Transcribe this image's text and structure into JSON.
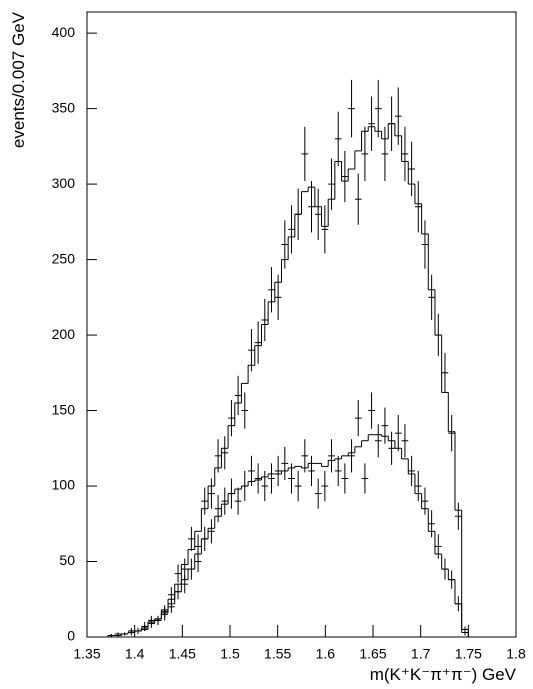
{
  "chart_data": {
    "type": "histogram",
    "x_label": "m(K⁺K⁻π⁺π⁻) GeV",
    "y_label": "events/0.007 GeV",
    "xlim": [
      1.35,
      1.8
    ],
    "xticks": [
      1.35,
      1.4,
      1.45,
      1.5,
      1.55,
      1.6,
      1.65,
      1.7,
      1.75,
      1.8
    ],
    "ylim": [
      0,
      414
    ],
    "yticks": [
      0,
      50,
      100,
      150,
      200,
      250,
      300,
      350,
      400
    ],
    "bins": [
      1.358,
      1.365,
      1.372,
      1.379,
      1.386,
      1.393,
      1.4,
      1.407,
      1.414,
      1.421,
      1.428,
      1.435,
      1.442,
      1.449,
      1.456,
      1.463,
      1.47,
      1.477,
      1.484,
      1.491,
      1.498,
      1.505,
      1.512,
      1.519,
      1.526,
      1.533,
      1.54,
      1.547,
      1.554,
      1.561,
      1.568,
      1.575,
      1.582,
      1.589,
      1.596,
      1.603,
      1.61,
      1.617,
      1.624,
      1.631,
      1.638,
      1.645,
      1.652,
      1.659,
      1.666,
      1.673,
      1.68,
      1.687,
      1.694,
      1.701,
      1.708,
      1.715,
      1.722,
      1.729,
      1.736,
      1.743,
      1.75
    ],
    "series": [
      {
        "color": "#000000",
        "values": [
          0,
          0,
          1,
          1,
          2,
          3,
          4,
          6,
          10,
          12,
          18,
          25,
          35,
          48,
          58,
          70,
          85,
          100,
          112,
          125,
          140,
          155,
          168,
          180,
          193,
          207,
          222,
          235,
          250,
          265,
          280,
          295,
          298,
          285,
          272,
          290,
          315,
          302,
          310,
          322,
          335,
          338,
          335,
          330,
          340,
          332,
          315,
          300,
          287,
          267,
          230,
          200,
          162,
          136,
          84,
          5
        ],
        "points": [
          0,
          0,
          1,
          2,
          2,
          4,
          4,
          7,
          11,
          11,
          17,
          28,
          42,
          45,
          65,
          60,
          90,
          95,
          120,
          122,
          145,
          160,
          150,
          190,
          195,
          210,
          230,
          225,
          260,
          270,
          280,
          320,
          285,
          280,
          270,
          300,
          330,
          305,
          350,
          290,
          320,
          340,
          350,
          320,
          340,
          345,
          320,
          310,
          285,
          260,
          225,
          200,
          175,
          135,
          80,
          5
        ],
        "errors": [
          0,
          0,
          1,
          1,
          1,
          2,
          2,
          3,
          3,
          3,
          4,
          5,
          6,
          7,
          8,
          8,
          9,
          10,
          11,
          11,
          12,
          13,
          12,
          14,
          14,
          14,
          15,
          15,
          16,
          16,
          17,
          18,
          17,
          17,
          16,
          17,
          18,
          17,
          19,
          17,
          18,
          18,
          19,
          18,
          18,
          19,
          18,
          18,
          17,
          16,
          15,
          14,
          13,
          12,
          9,
          2
        ]
      },
      {
        "color": "#000000",
        "values": [
          0,
          0,
          1,
          1,
          2,
          3,
          4,
          5,
          9,
          12,
          16,
          22,
          30,
          38,
          45,
          55,
          65,
          72,
          80,
          88,
          95,
          98,
          100,
          103,
          104,
          106,
          108,
          108,
          110,
          112,
          113,
          112,
          115,
          115,
          113,
          117,
          118,
          120,
          122,
          126,
          130,
          134,
          134,
          133,
          130,
          125,
          118,
          108,
          95,
          85,
          70,
          55,
          45,
          38,
          22,
          3
        ],
        "points": [
          0,
          0,
          1,
          1,
          2,
          3,
          4,
          6,
          9,
          11,
          15,
          20,
          30,
          35,
          45,
          50,
          65,
          70,
          85,
          90,
          95,
          90,
          100,
          110,
          105,
          100,
          105,
          110,
          115,
          105,
          100,
          120,
          110,
          95,
          100,
          120,
          110,
          105,
          120,
          145,
          105,
          150,
          130,
          140,
          125,
          135,
          130,
          110,
          100,
          90,
          75,
          60,
          45,
          38,
          22,
          3
        ],
        "errors": [
          0,
          0,
          1,
          1,
          1,
          2,
          2,
          2,
          3,
          3,
          4,
          4,
          5,
          6,
          7,
          7,
          8,
          8,
          9,
          9,
          10,
          9,
          10,
          10,
          10,
          10,
          10,
          10,
          11,
          10,
          10,
          11,
          10,
          10,
          10,
          11,
          10,
          10,
          11,
          12,
          10,
          12,
          11,
          12,
          11,
          12,
          11,
          10,
          10,
          9,
          9,
          8,
          7,
          6,
          5,
          2
        ]
      }
    ]
  }
}
